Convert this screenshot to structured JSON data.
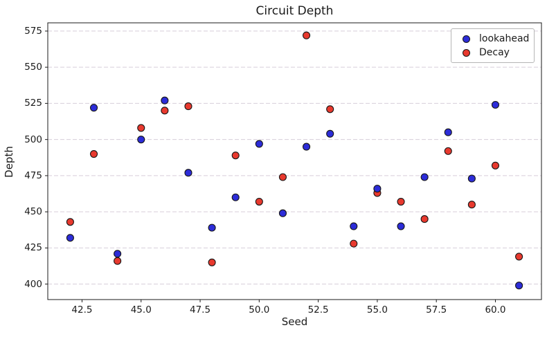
{
  "chart_data": {
    "type": "scatter",
    "title": "Circuit Depth",
    "xlabel": "Seed",
    "ylabel": "Depth",
    "xlim": [
      41.05,
      61.95
    ],
    "ylim": [
      389.3,
      580.7
    ],
    "xticks": [
      42.5,
      45.0,
      47.5,
      50.0,
      52.5,
      55.0,
      57.5,
      60.0
    ],
    "xtick_labels": [
      "42.5",
      "45.0",
      "47.5",
      "50.0",
      "52.5",
      "55.0",
      "57.5",
      "60.0"
    ],
    "yticks": [
      400,
      425,
      450,
      475,
      500,
      525,
      550,
      575
    ],
    "grid": "horizontal-dashed",
    "grid_color": "#d6ced9",
    "spine_color": "#1a1a1a",
    "marker_edge_color": "#161616",
    "legend_position": "upper right",
    "x": [
      42,
      43,
      44,
      45,
      46,
      47,
      48,
      49,
      50,
      51,
      52,
      53,
      54,
      55,
      56,
      57,
      58,
      59,
      60,
      61
    ],
    "series": [
      {
        "name": "lookahead",
        "color": "#2c2cd8",
        "values": [
          432,
          522,
          421,
          500,
          527,
          477,
          439,
          460,
          497,
          449,
          495,
          504,
          440,
          466,
          440,
          474,
          505,
          473,
          524,
          399
        ]
      },
      {
        "name": "Decay",
        "color": "#e8392e",
        "values": [
          443,
          490,
          416,
          508,
          520,
          523,
          415,
          489,
          457,
          474,
          572,
          521,
          428,
          463,
          457,
          445,
          492,
          455,
          482,
          419
        ]
      }
    ]
  }
}
